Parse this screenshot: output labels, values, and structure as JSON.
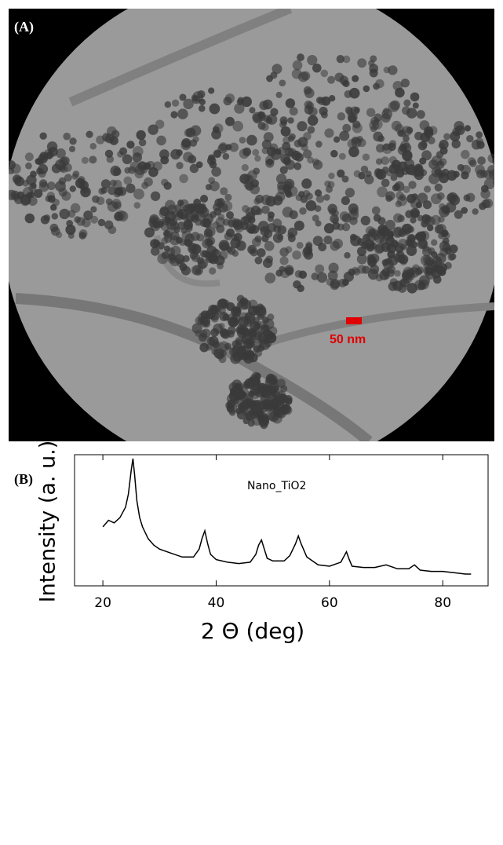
{
  "panel_a": {
    "label": "(A)",
    "scale_bar": "50 nm"
  },
  "panel_b_label": "(B)",
  "chart_data": {
    "type": "line",
    "x_label": "2 Θ (deg)",
    "y_label": "Intensity (a. u.)",
    "annotation": "Nano_TiO2",
    "x": [
      20,
      21,
      22,
      23,
      24,
      24.5,
      25,
      25.3,
      25.6,
      26,
      26.5,
      27,
      28,
      29,
      30,
      32,
      34,
      36,
      37,
      37.5,
      38,
      38.5,
      39,
      40,
      42,
      44,
      46,
      47,
      47.5,
      48,
      48.5,
      49,
      50,
      52,
      53,
      54,
      54.5,
      55,
      56,
      58,
      60,
      62,
      62.5,
      63,
      63.5,
      64,
      66,
      68,
      70,
      72,
      74,
      75,
      76,
      78,
      80,
      82,
      84,
      85
    ],
    "values": [
      45,
      50,
      48,
      52,
      60,
      70,
      88,
      97,
      85,
      65,
      52,
      45,
      36,
      31,
      28,
      25,
      22,
      22,
      28,
      36,
      42,
      32,
      24,
      20,
      18,
      17,
      18,
      24,
      31,
      35,
      28,
      21,
      19,
      19,
      23,
      32,
      38,
      32,
      22,
      16,
      15,
      18,
      22,
      26,
      20,
      15,
      14,
      14,
      16,
      13,
      13,
      16,
      12,
      11,
      11,
      10,
      9,
      9
    ],
    "color": "#000000",
    "xlim": [
      15,
      88
    ],
    "xticks": [
      20,
      40,
      60,
      80
    ],
    "ylim": [
      0,
      100
    ],
    "yticks": []
  }
}
